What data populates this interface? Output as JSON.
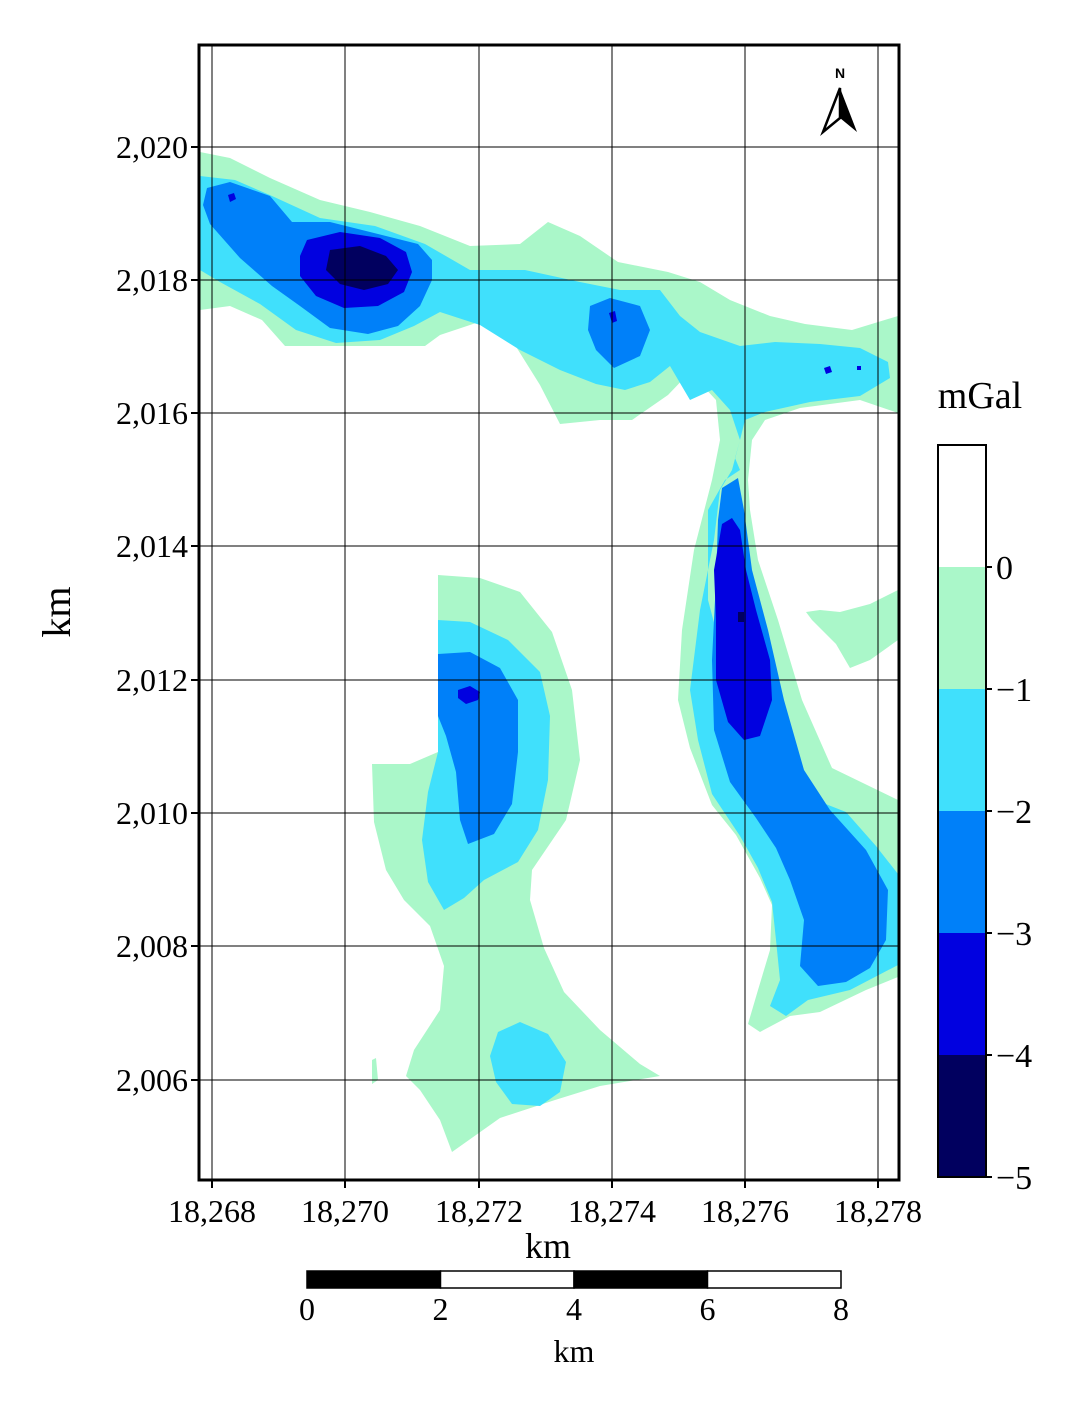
{
  "map": {
    "x_label": "km",
    "y_label": "km",
    "x_ticks": [
      "18,268",
      "18,270",
      "18,272",
      "18,274",
      "18,276",
      "18,278"
    ],
    "y_ticks": [
      "2,020",
      "2,018",
      "2,016",
      "2,014",
      "2,012",
      "2,010",
      "2,008",
      "2,006"
    ],
    "north_label": "N"
  },
  "legend": {
    "unit": "mGal",
    "labels": [
      "0",
      "−1",
      "−2",
      "−3",
      "−4",
      "−5"
    ],
    "colors": [
      "#ffffff",
      "#aaf7c9",
      "#40e0fc",
      "#0080f9",
      "#0101e0",
      "#01005f"
    ]
  },
  "scale_bar": {
    "labels": [
      "0",
      "2",
      "4",
      "6",
      "8"
    ],
    "unit": "km"
  },
  "colors": {
    "level_0_to_-1": "#aaf7c9",
    "level_-1_to_-2": "#40e0fc",
    "level_-2_to_-3": "#0080f9",
    "level_-3_to_-4": "#0101e0",
    "level_-4_to_-5": "#01005f"
  }
}
